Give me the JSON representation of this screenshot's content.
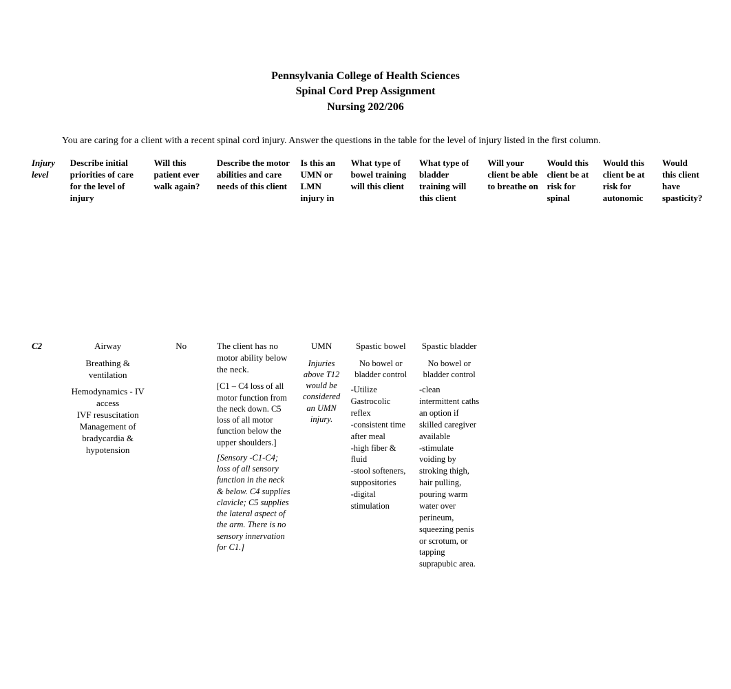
{
  "header": {
    "line1": "Pennsylvania College of Health Sciences",
    "line2": "Spinal Cord Prep Assignment",
    "line3": "Nursing 202/206"
  },
  "intro": "You are caring for a client with a recent spinal cord injury. Answer the questions in the table for the level of injury listed in the first column.",
  "columns": {
    "injury": "Injury level",
    "priorities": "Describe initial priorities of care for the level of injury",
    "walk": "Will this patient ever walk again?",
    "motor": "Describe the motor abilities and care needs of this client",
    "umn": "Is this an UMN or LMN injury in",
    "bowel": "What type of bowel training will this client",
    "bladder": "What type of bladder training will this client",
    "breathe": "Will your client be able to breathe on",
    "spinal": "Would this client be at risk for spinal",
    "autonomic": "Would this client be at risk for autonomic",
    "spasticity": "Would this client have spasticity?"
  },
  "row": {
    "injury_level": "C2",
    "priorities": {
      "p1": "Airway",
      "p2": "Breathing & ventilation",
      "p3": "Hemodynamics - IV access",
      "p4": "IVF resuscitation",
      "p5": "Management of bradycardia & hypotension"
    },
    "walk": "No",
    "motor": {
      "p1": "The client has no motor ability below the neck.",
      "p2": "[C1 – C4 loss of all motor function from the neck down. C5 loss of all motor function below the upper shoulders.]",
      "p3": "[Sensory -C1-C4; loss of all sensory function in the neck & below. C4 supplies clavicle; C5 supplies the lateral aspect of the arm. There is no sensory innervation for C1.]"
    },
    "umn": {
      "p1": "UMN",
      "p2": "Injuries above T12 would be considered an UMN injury."
    },
    "bowel": {
      "p1": "Spastic bowel",
      "p2": "No bowel or bladder control",
      "i1": "-Utilize Gastrocolic reflex",
      "i2": "-consistent time after meal",
      "i3": "-high fiber & fluid",
      "i4": "-stool softeners, suppositories",
      "i5": "-digital stimulation"
    },
    "bladder": {
      "p1": "Spastic bladder",
      "p2": "No bowel or bladder control",
      "i1": "-clean intermittent caths an option if skilled caregiver available",
      "i2": "-stimulate voiding by stroking thigh, hair pulling, pouring warm water over perineum, squeezing penis or scrotum, or tapping suprapubic area."
    }
  },
  "colors": {
    "text": "#000000",
    "background": "#ffffff"
  }
}
